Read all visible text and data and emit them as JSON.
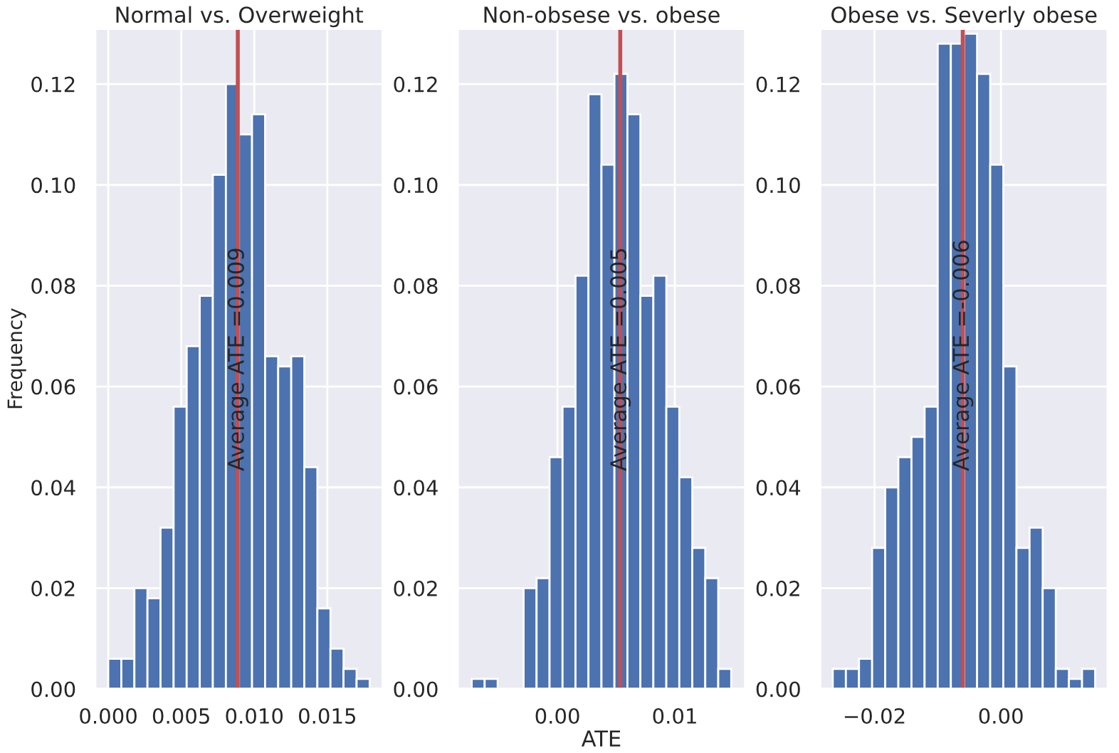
{
  "chart_data": [
    {
      "type": "histogram",
      "title": "Normal vs. Overweight",
      "ylabel": "Frequency",
      "color": "#4c72b0",
      "bins": [
        0,
        0.000895,
        0.00179,
        0.002685,
        0.00358,
        0.004475,
        0.00537,
        0.006265,
        0.00716,
        0.008055,
        0.00895,
        0.009845,
        0.01074,
        0.011635,
        0.01253,
        0.013425,
        0.01432,
        0.015215,
        0.01611,
        0.017005,
        0.0179
      ],
      "values": [
        0.006,
        0.006,
        0.02,
        0.018,
        0.032,
        0.056,
        0.068,
        0.078,
        0.102,
        0.12,
        0.11,
        0.114,
        0.066,
        0.064,
        0.066,
        0.044,
        0.016,
        0.008,
        0.004,
        0.002
      ],
      "xlim": [
        -0.0009,
        0.0188
      ],
      "xticks": [
        {
          "value": 0,
          "label": "0.000"
        },
        {
          "value": 0.005,
          "label": "0.005"
        },
        {
          "value": 0.01,
          "label": "0.010"
        },
        {
          "value": 0.015,
          "label": "0.015"
        }
      ],
      "ylim": [
        0,
        0.131
      ],
      "yticks": [
        {
          "value": 0,
          "label": "0.00"
        },
        {
          "value": 0.02,
          "label": "0.02"
        },
        {
          "value": 0.04,
          "label": "0.04"
        },
        {
          "value": 0.06,
          "label": "0.06"
        },
        {
          "value": 0.08,
          "label": "0.08"
        },
        {
          "value": 0.1,
          "label": "0.10"
        },
        {
          "value": 0.12,
          "label": "0.12"
        }
      ],
      "ref_lines": [
        {
          "axis": "x",
          "value": 0.00887,
          "label": "Average ATE =0.009",
          "color": "#c44e52"
        }
      ],
      "grid": true
    },
    {
      "type": "histogram",
      "title": "Non-obsese vs. obese",
      "xlabel": "ATE",
      "color": "#4c72b0",
      "bins": [
        -0.0073,
        -0.006195,
        -0.00509,
        -0.003985,
        -0.00288,
        -0.001775,
        -0.00067,
        0.000435,
        0.00154,
        0.002645,
        0.00375,
        0.004855,
        0.00596,
        0.007065,
        0.00817,
        0.009275,
        0.01038,
        0.011485,
        0.01259,
        0.013695,
        0.0148
      ],
      "values": [
        0.002,
        0.002,
        0,
        0,
        0.02,
        0.022,
        0.046,
        0.056,
        0.082,
        0.118,
        0.104,
        0.122,
        0.114,
        0.078,
        0.082,
        0.056,
        0.042,
        0.028,
        0.022,
        0.004
      ],
      "xlim": [
        -0.0085,
        0.016
      ],
      "xticks": [
        {
          "value": 0,
          "label": "0.00"
        },
        {
          "value": 0.01,
          "label": "0.01"
        }
      ],
      "ylim": [
        0,
        0.131
      ],
      "yticks": [
        {
          "value": 0,
          "label": "0.00"
        },
        {
          "value": 0.02,
          "label": "0.02"
        },
        {
          "value": 0.04,
          "label": "0.04"
        },
        {
          "value": 0.06,
          "label": "0.06"
        },
        {
          "value": 0.08,
          "label": "0.08"
        },
        {
          "value": 0.1,
          "label": "0.10"
        },
        {
          "value": 0.12,
          "label": "0.12"
        }
      ],
      "ref_lines": [
        {
          "axis": "x",
          "value": 0.00535,
          "label": "Average ATE =0.005",
          "color": "#c44e52"
        }
      ],
      "grid": true
    },
    {
      "type": "histogram",
      "title": "Obese vs. Severly obese",
      "color": "#4c72b0",
      "bins": [
        -0.0266,
        -0.024525,
        -0.02245,
        -0.020375,
        -0.0183,
        -0.016225,
        -0.01415,
        -0.012075,
        -0.01,
        -0.007925,
        -0.00585,
        -0.003775,
        -0.0017,
        0.000375,
        0.00245,
        0.004525,
        0.0066,
        0.008675,
        0.01075,
        0.012825,
        0.0149
      ],
      "values": [
        0.004,
        0.004,
        0.006,
        0.028,
        0.04,
        0.046,
        0.05,
        0.056,
        0.128,
        0.128,
        0.13,
        0.122,
        0.104,
        0.064,
        0.028,
        0.032,
        0.02,
        0.004,
        0.002,
        0.004
      ],
      "xlim": [
        -0.0286,
        0.0169
      ],
      "xticks": [
        {
          "value": -0.02,
          "label": "−0.02"
        },
        {
          "value": 0,
          "label": "0.00"
        }
      ],
      "ylim": [
        0,
        0.131
      ],
      "yticks": [
        {
          "value": 0,
          "label": "0.00"
        },
        {
          "value": 0.02,
          "label": "0.02"
        },
        {
          "value": 0.04,
          "label": "0.04"
        },
        {
          "value": 0.06,
          "label": "0.06"
        },
        {
          "value": 0.08,
          "label": "0.08"
        },
        {
          "value": 0.1,
          "label": "0.10"
        },
        {
          "value": 0.12,
          "label": "0.12"
        }
      ],
      "ref_lines": [
        {
          "axis": "x",
          "value": -0.00604,
          "label": "Average ATE =-0.006",
          "color": "#c44e52"
        }
      ],
      "grid": true
    }
  ]
}
